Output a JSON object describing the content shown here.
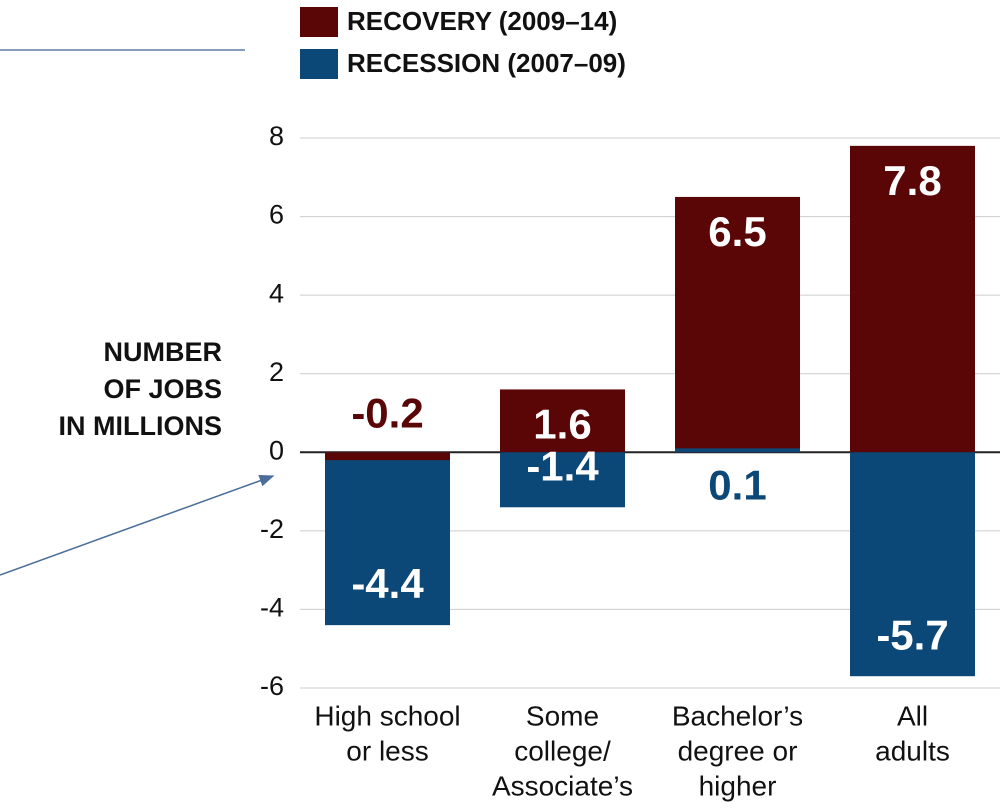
{
  "chart_data": {
    "type": "bar",
    "y_label": [
      "NUMBER",
      "OF JOBS",
      "IN MILLIONS"
    ],
    "categories": [
      [
        "High school",
        "or less"
      ],
      [
        "Some",
        "college/",
        "Associate’s"
      ],
      [
        "Bachelor’s",
        "degree or",
        "higher"
      ],
      [
        "All",
        "adults"
      ]
    ],
    "series": [
      {
        "name": "RECOVERY (2009–14)",
        "color": "#5a0606",
        "values": [
          -0.2,
          1.6,
          6.5,
          7.8
        ]
      },
      {
        "name": "RECESSION (2007–09)",
        "color": "#0b4877",
        "values": [
          -4.4,
          -1.4,
          0.1,
          -5.7
        ]
      }
    ],
    "ylim": [
      -6,
      8
    ],
    "yticks": [
      -6,
      -4,
      -2,
      0,
      2,
      4,
      6,
      8
    ],
    "grid": true
  }
}
